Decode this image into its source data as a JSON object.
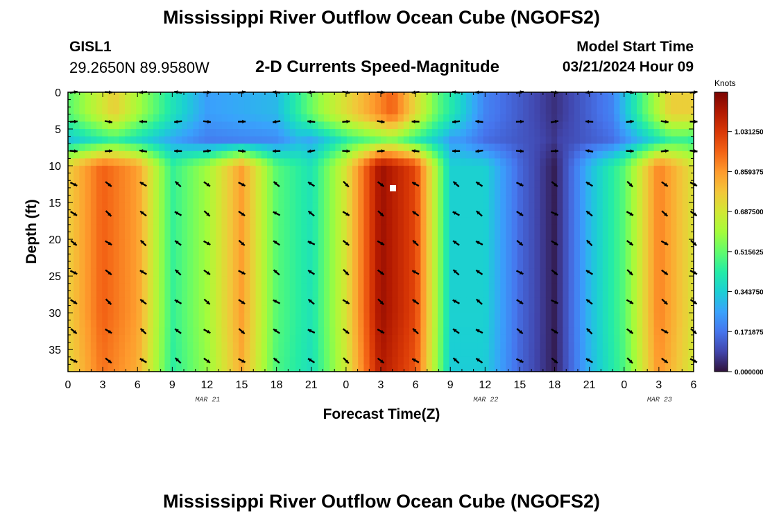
{
  "page": {
    "title": "Mississippi River Outflow Ocean Cube (NGOFS2)",
    "title_repeat": "Mississippi River Outflow Ocean Cube (NGOFS2)",
    "station_id": "GISL1",
    "station_coords": "29.2650N  89.9580W",
    "subtitle": "2-D Currents Speed-Magnitude",
    "model_start_label": "Model Start Time",
    "model_start_value": "03/21/2024 Hour 09"
  },
  "chart_data": {
    "type": "heatmap",
    "title": "2-D Currents Speed-Magnitude",
    "xlabel": "Forecast Time(Z)",
    "ylabel": "Depth (ft)",
    "x_hours_from_mar21_00z": [
      0,
      54
    ],
    "x_ticks": [
      "0",
      "3",
      "6",
      "9",
      "12",
      "15",
      "18",
      "21",
      "0",
      "3",
      "6",
      "9",
      "12",
      "15",
      "18",
      "21",
      "0",
      "3",
      "6"
    ],
    "date_labels": [
      "MAR 21",
      "MAR 22",
      "MAR 23"
    ],
    "y_range_ft": [
      0,
      38
    ],
    "y_ticks": [
      "0",
      "5",
      "10",
      "15",
      "20",
      "25",
      "30",
      "35"
    ],
    "colorbar": {
      "unit": "Knots",
      "range": [
        0,
        1.2
      ],
      "tick_labels": [
        "0.000000",
        "0.171875",
        "0.343750",
        "0.515625",
        "0.687500",
        "0.859375",
        "1.031250"
      ],
      "colors": [
        "#30123b",
        "#4145ab",
        "#4675ed",
        "#39a2fc",
        "#1bcfd4",
        "#24eca6",
        "#61fc6c",
        "#a4fc3b",
        "#d1e834",
        "#f3c63a",
        "#fe9b2d",
        "#f36315",
        "#d93806",
        "#b11901",
        "#7a0403"
      ]
    },
    "surface_speed_knots": [
      {
        "hour": 0,
        "value": 0.5
      },
      {
        "hour": 4,
        "value": 0.75
      },
      {
        "hour": 9,
        "value": 0.4
      },
      {
        "hour": 12,
        "value": 0.25
      },
      {
        "hour": 18,
        "value": 0.3
      },
      {
        "hour": 22,
        "value": 0.6
      },
      {
        "hour": 28,
        "value": 0.95
      },
      {
        "hour": 32,
        "value": 0.5
      },
      {
        "hour": 36,
        "value": 0.2
      },
      {
        "hour": 42,
        "value": 0.05
      },
      {
        "hour": 47,
        "value": 0.2
      },
      {
        "hour": 52,
        "value": 0.75
      }
    ],
    "deep_speed_knots": [
      {
        "hour": 0,
        "value": 0.75
      },
      {
        "hour": 3,
        "value": 0.95
      },
      {
        "hour": 6,
        "value": 0.85
      },
      {
        "hour": 9,
        "value": 0.45
      },
      {
        "hour": 12,
        "value": 0.6
      },
      {
        "hour": 15,
        "value": 0.85
      },
      {
        "hour": 18,
        "value": 0.5
      },
      {
        "hour": 21,
        "value": 0.4
      },
      {
        "hour": 24,
        "value": 0.7
      },
      {
        "hour": 27,
        "value": 1.15
      },
      {
        "hour": 30,
        "value": 1.0
      },
      {
        "hour": 33,
        "value": 0.35
      },
      {
        "hour": 36,
        "value": 0.35
      },
      {
        "hour": 39,
        "value": 0.15
      },
      {
        "hour": 42,
        "value": 0.02
      },
      {
        "hour": 45,
        "value": 0.3
      },
      {
        "hour": 48,
        "value": 0.5
      },
      {
        "hour": 51,
        "value": 0.9
      },
      {
        "hour": 54,
        "value": 0.7
      }
    ],
    "arrow_rows_ft": [
      0,
      4,
      8,
      12.5,
      16.5,
      20.5,
      24.5,
      28.5,
      32.5,
      36.5
    ],
    "arrow_columns_hour": [
      0.5,
      3.5,
      6.5,
      9.5,
      12,
      15,
      18,
      21,
      24,
      27,
      30,
      33.5,
      35.5,
      39,
      42,
      45,
      48.5,
      51.5,
      54
    ]
  }
}
